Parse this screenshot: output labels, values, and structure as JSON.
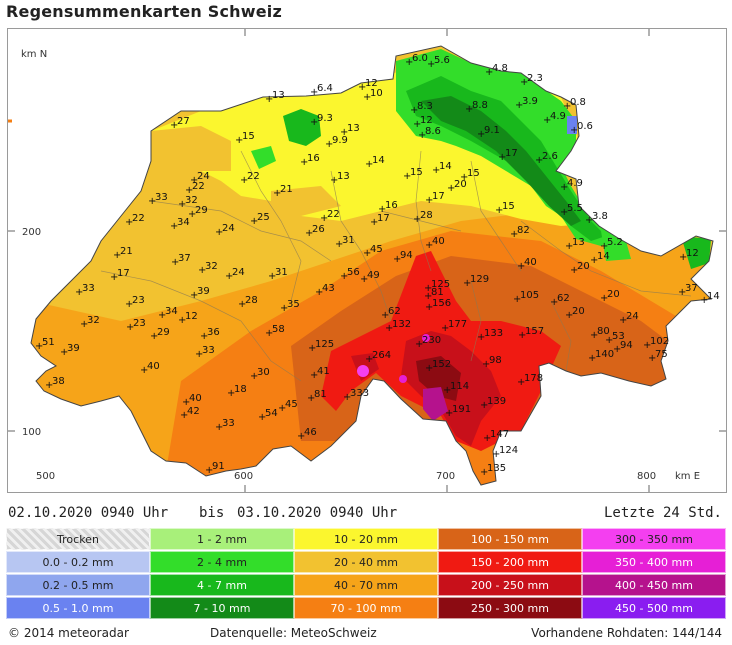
{
  "title": "Regensummenkarten Schweiz",
  "axis": {
    "north_label": "km N",
    "east_label": "km E",
    "y_ticks": [
      "200",
      "100"
    ],
    "x_ticks": [
      "500",
      "600",
      "700",
      "800"
    ]
  },
  "time": {
    "from": "02.10.2020 0940 Uhr",
    "bis": "bis",
    "to": "03.10.2020 0940 Uhr",
    "period": "Letzte 24 Std."
  },
  "legend": [
    {
      "label": "Trocken",
      "color": "#dcdcdc"
    },
    {
      "label": "0.0 - 0.2 mm",
      "color": "#b7c6f2"
    },
    {
      "label": "0.2 - 0.5 mm",
      "color": "#8fa6ee"
    },
    {
      "label": "0.5 - 1.0 mm",
      "color": "#6a82f0"
    },
    {
      "label": "1 - 2 mm",
      "color": "#a8f07a"
    },
    {
      "label": "2 - 4 mm",
      "color": "#33dd2a"
    },
    {
      "label": "4 - 7 mm",
      "color": "#18b81c"
    },
    {
      "label": "7 - 10 mm",
      "color": "#138a18"
    },
    {
      "label": "10 - 20 mm",
      "color": "#fbf62e"
    },
    {
      "label": "20 - 40 mm",
      "color": "#f2c230"
    },
    {
      "label": "40 - 70 mm",
      "color": "#f6a419"
    },
    {
      "label": "70 - 100 mm",
      "color": "#f57f13"
    },
    {
      "label": "100 - 150 mm",
      "color": "#d86418"
    },
    {
      "label": "150 - 200 mm",
      "color": "#f01a12"
    },
    {
      "label": "200 - 250 mm",
      "color": "#c8101a"
    },
    {
      "label": "250 - 300 mm",
      "color": "#8c0b12"
    },
    {
      "label": "300 - 350 mm",
      "color": "#f43ff0"
    },
    {
      "label": "350 - 400 mm",
      "color": "#e61fd6"
    },
    {
      "label": "400 - 450 mm",
      "color": "#b5128d"
    },
    {
      "label": "450 - 500 mm",
      "color": "#8a1df0"
    }
  ],
  "stations": [
    [
      "6.0",
      410,
      60
    ],
    [
      "5.6",
      432,
      62
    ],
    [
      "4.8",
      490,
      70
    ],
    [
      "2.3",
      525,
      80
    ],
    [
      "6.4",
      315,
      90
    ],
    [
      "12",
      363,
      85
    ],
    [
      "10",
      368,
      95
    ],
    [
      "13",
      270,
      97
    ],
    [
      "0.8",
      568,
      104
    ],
    [
      "8.3",
      415,
      108
    ],
    [
      "8.8",
      470,
      107
    ],
    [
      "3.9",
      520,
      103
    ],
    [
      "4.9",
      548,
      118
    ],
    [
      "0.6",
      575,
      128
    ],
    [
      "27",
      175,
      123
    ],
    [
      "15",
      240,
      138
    ],
    [
      "9.3",
      315,
      120
    ],
    [
      "9.9",
      330,
      142
    ],
    [
      "13",
      345,
      130
    ],
    [
      "12",
      418,
      122
    ],
    [
      "8.6",
      423,
      133
    ],
    [
      "9.1",
      482,
      132
    ],
    [
      "2.6",
      540,
      158
    ],
    [
      "17",
      503,
      155
    ],
    [
      "16",
      305,
      160
    ],
    [
      "14",
      370,
      162
    ],
    [
      "14",
      437,
      168
    ],
    [
      "15",
      465,
      175
    ],
    [
      "15",
      408,
      174
    ],
    [
      "13",
      335,
      178
    ],
    [
      "24",
      195,
      178
    ],
    [
      "22",
      190,
      188
    ],
    [
      "22",
      245,
      178
    ],
    [
      "21",
      278,
      191
    ],
    [
      "20",
      452,
      186
    ],
    [
      "17",
      430,
      198
    ],
    [
      "4.9",
      565,
      185
    ],
    [
      "33",
      153,
      199
    ],
    [
      "32",
      183,
      202
    ],
    [
      "29",
      193,
      212
    ],
    [
      "22",
      130,
      220
    ],
    [
      "34",
      175,
      224
    ],
    [
      "25",
      255,
      219
    ],
    [
      "22",
      325,
      216
    ],
    [
      "17",
      375,
      220
    ],
    [
      "16",
      383,
      207
    ],
    [
      "28",
      418,
      217
    ],
    [
      "15",
      500,
      208
    ],
    [
      "5.5",
      565,
      210
    ],
    [
      "3.8",
      590,
      218
    ],
    [
      "24",
      220,
      230
    ],
    [
      "26",
      310,
      231
    ],
    [
      "31",
      340,
      242
    ],
    [
      "40",
      430,
      243
    ],
    [
      "82",
      515,
      232
    ],
    [
      "13",
      570,
      244
    ],
    [
      "5.2",
      605,
      244
    ],
    [
      "14",
      595,
      258
    ],
    [
      "20",
      575,
      268
    ],
    [
      "12",
      684,
      255
    ],
    [
      "21",
      118,
      253
    ],
    [
      "37",
      176,
      260
    ],
    [
      "32",
      203,
      268
    ],
    [
      "45",
      368,
      251
    ],
    [
      "94",
      398,
      257
    ],
    [
      "40",
      522,
      264
    ],
    [
      "24",
      230,
      274
    ],
    [
      "31",
      273,
      274
    ],
    [
      "17",
      115,
      275
    ],
    [
      "56",
      345,
      274
    ],
    [
      "49",
      365,
      277
    ],
    [
      "129",
      468,
      281
    ],
    [
      "125",
      429,
      286
    ],
    [
      "81",
      429,
      294
    ],
    [
      "156",
      430,
      305
    ],
    [
      "105",
      518,
      297
    ],
    [
      "62",
      555,
      300
    ],
    [
      "20",
      605,
      296
    ],
    [
      "37",
      683,
      290
    ],
    [
      "14",
      705,
      298
    ],
    [
      "33",
      80,
      290
    ],
    [
      "39",
      195,
      293
    ],
    [
      "28",
      243,
      302
    ],
    [
      "35",
      285,
      306
    ],
    [
      "43",
      320,
      290
    ],
    [
      "62",
      386,
      313
    ],
    [
      "23",
      130,
      302
    ],
    [
      "34",
      163,
      313
    ],
    [
      "12",
      183,
      318
    ],
    [
      "20",
      570,
      313
    ],
    [
      "24",
      624,
      318
    ],
    [
      "32",
      85,
      322
    ],
    [
      "23",
      131,
      325
    ],
    [
      "29",
      155,
      334
    ],
    [
      "36",
      205,
      334
    ],
    [
      "58",
      270,
      331
    ],
    [
      "132",
      390,
      326
    ],
    [
      "177",
      446,
      326
    ],
    [
      "133",
      482,
      335
    ],
    [
      "157",
      523,
      333
    ],
    [
      "80",
      595,
      333
    ],
    [
      "53",
      610,
      338
    ],
    [
      "94",
      618,
      347
    ],
    [
      "102",
      648,
      343
    ],
    [
      "51",
      40,
      344
    ],
    [
      "39",
      65,
      350
    ],
    [
      "33",
      200,
      352
    ],
    [
      "125",
      313,
      346
    ],
    [
      "230",
      420,
      342
    ],
    [
      "98",
      487,
      362
    ],
    [
      "140",
      593,
      356
    ],
    [
      "75",
      653,
      356
    ],
    [
      "264",
      370,
      357
    ],
    [
      "40",
      145,
      368
    ],
    [
      "30",
      255,
      374
    ],
    [
      "41",
      315,
      373
    ],
    [
      "152",
      430,
      366
    ],
    [
      "178",
      522,
      380
    ],
    [
      "38",
      50,
      383
    ],
    [
      "114",
      448,
      388
    ],
    [
      "18",
      232,
      391
    ],
    [
      "81",
      312,
      396
    ],
    [
      "333",
      348,
      395
    ],
    [
      "139",
      485,
      403
    ],
    [
      "40",
      187,
      400
    ],
    [
      "42",
      185,
      413
    ],
    [
      "45",
      283,
      406
    ],
    [
      "54",
      263,
      415
    ],
    [
      "191",
      450,
      411
    ],
    [
      "33",
      220,
      425
    ],
    [
      "46",
      302,
      434
    ],
    [
      "147",
      488,
      436
    ],
    [
      "124",
      497,
      452
    ],
    [
      "91",
      210,
      468
    ],
    [
      "135",
      485,
      470
    ]
  ]
}
